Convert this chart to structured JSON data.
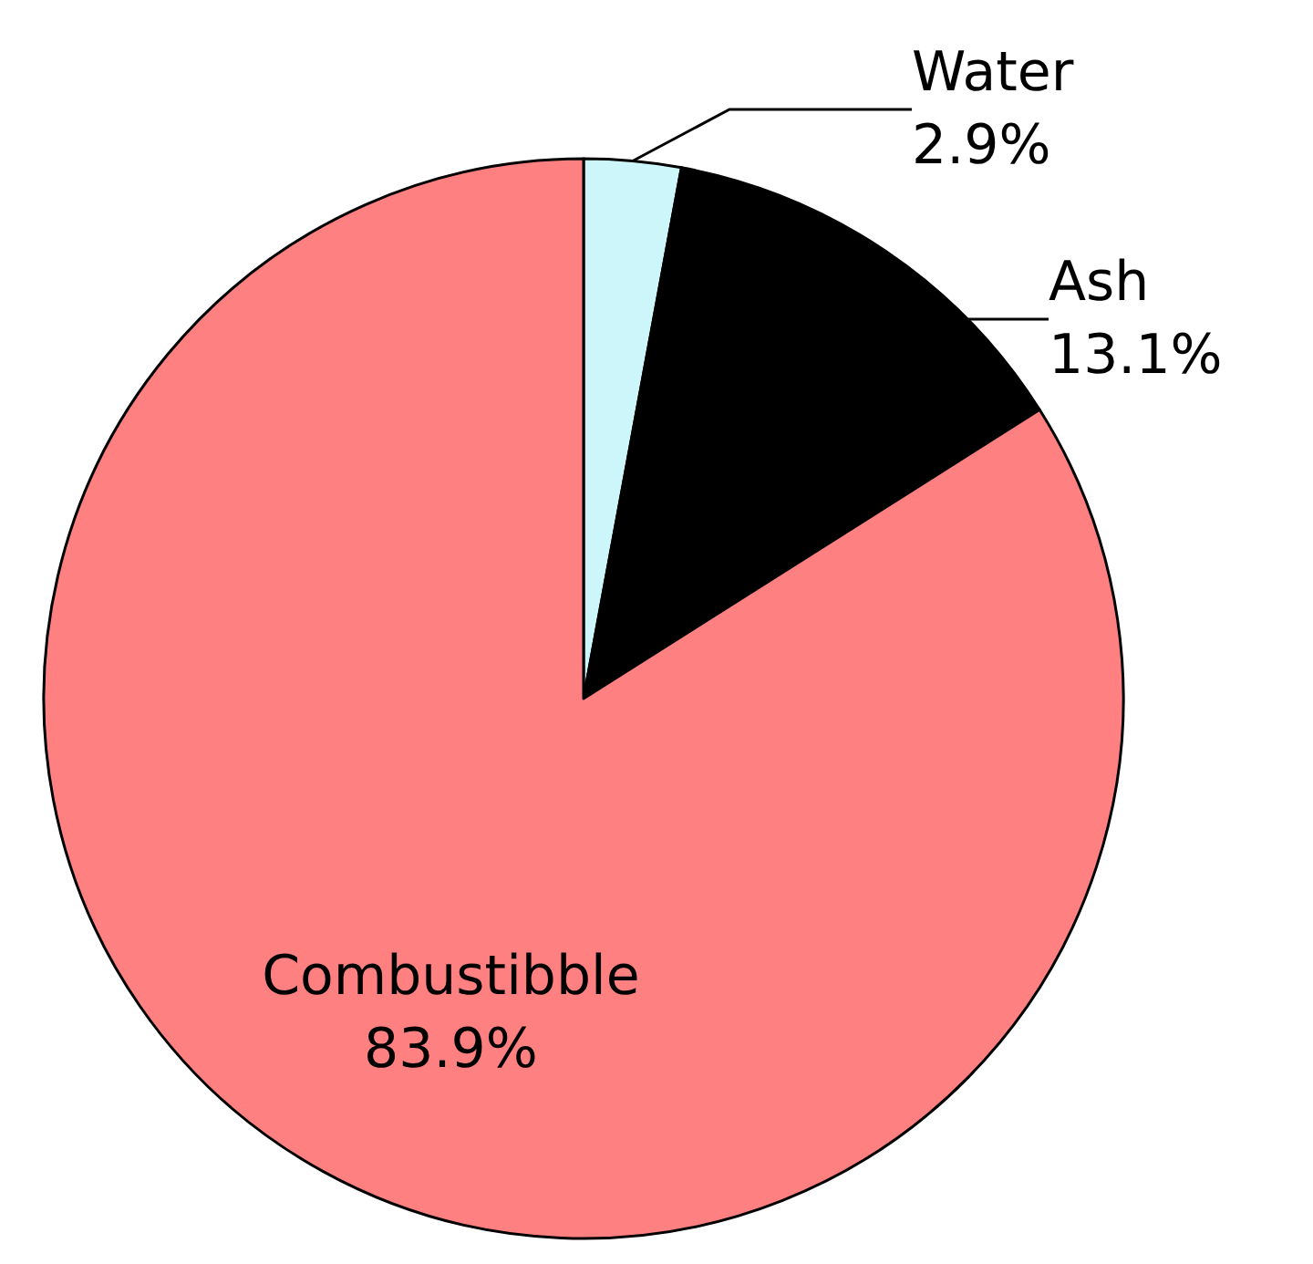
{
  "chart_data": {
    "type": "pie",
    "categories": [
      "Water",
      "Ash",
      "Combustibble"
    ],
    "values": [
      2.9,
      13.1,
      83.9
    ],
    "value_labels": [
      "2.9%",
      "13.1%",
      "83.9%"
    ],
    "colors": [
      "#ccf6fa",
      "#000000",
      "#ff8080"
    ],
    "legend": false
  }
}
